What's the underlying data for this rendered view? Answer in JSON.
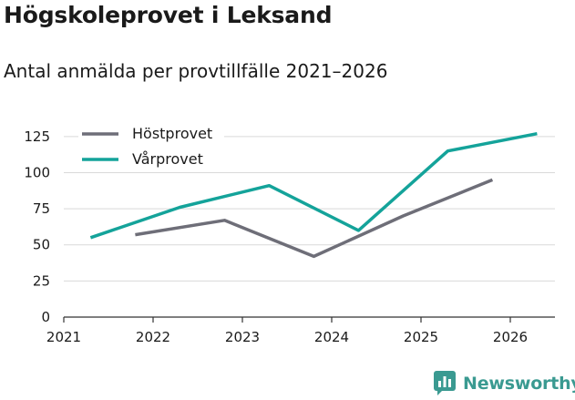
{
  "chart_data": {
    "type": "line",
    "title": "Högskoleprovet i Leksand",
    "subtitle": "Antal anmälda per provtillfälle 2021–2026",
    "xlabel": "",
    "ylabel": "",
    "xlim": [
      2021,
      2026.5
    ],
    "ylim": [
      0,
      135
    ],
    "x_ticks": [
      2021,
      2022,
      2023,
      2024,
      2025,
      2026
    ],
    "y_ticks": [
      0,
      25,
      50,
      75,
      100,
      125
    ],
    "grid": true,
    "legend_position": "top-left",
    "series": [
      {
        "name": "Höstprovet",
        "color": "#6e6e78",
        "x": [
          2021.8,
          2022.8,
          2023.8,
          2024.8,
          2025.8
        ],
        "values": [
          57,
          67,
          42,
          70,
          95
        ]
      },
      {
        "name": "Vårprovet",
        "color": "#14a39a",
        "x": [
          2021.3,
          2022.3,
          2023.3,
          2024.3,
          2025.3,
          2026.3
        ],
        "values": [
          55,
          76,
          91,
          60,
          115,
          127
        ]
      }
    ]
  },
  "brand": {
    "name": "Newsworthy",
    "logo_color": "#3a9a91"
  }
}
